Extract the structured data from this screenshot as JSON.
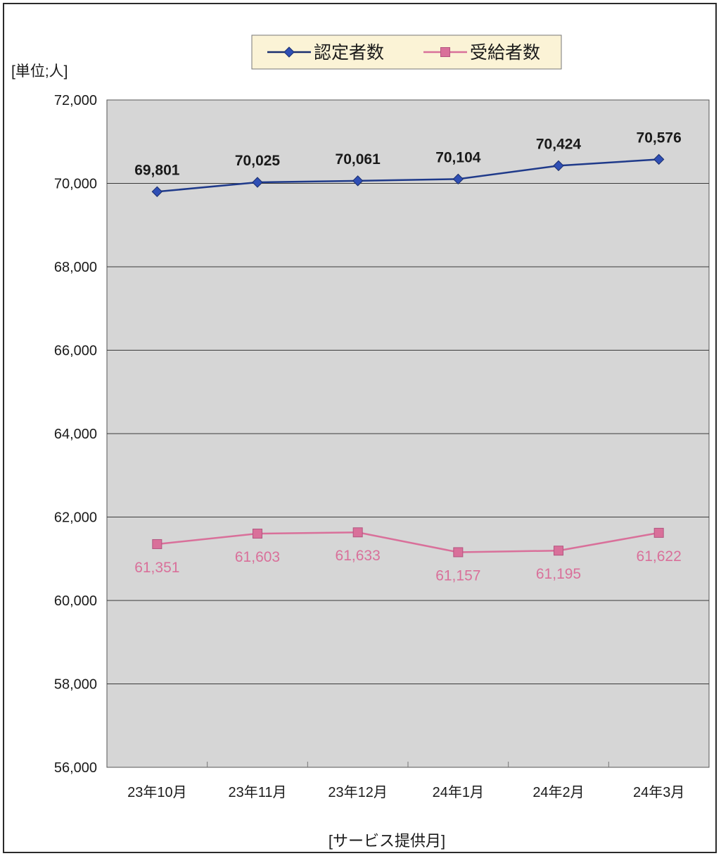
{
  "chart_data": {
    "type": "line",
    "unit_label": "[単位;人]",
    "xlabel": "[サービス提供月]",
    "categories": [
      "23年10月",
      "23年11月",
      "23年12月",
      "24年1月",
      "24年2月",
      "24年3月"
    ],
    "ylim": [
      56000,
      72000
    ],
    "yticks": [
      72000,
      70000,
      68000,
      66000,
      64000,
      62000,
      60000,
      58000,
      56000
    ],
    "ytick_labels": [
      "72,000",
      "70,000",
      "68,000",
      "66,000",
      "64,000",
      "62,000",
      "60,000",
      "58,000",
      "56,000"
    ],
    "grid": true,
    "legend_position": "top-center",
    "series": [
      {
        "name": "認定者数",
        "marker": "diamond",
        "color": "#1f3a8a",
        "values": [
          69801,
          70025,
          70061,
          70104,
          70424,
          70576
        ],
        "labels": [
          "69,801",
          "70,025",
          "70,061",
          "70,104",
          "70,424",
          "70,576"
        ]
      },
      {
        "name": "受給者数",
        "marker": "square",
        "color": "#d9709a",
        "values": [
          61351,
          61603,
          61633,
          61157,
          61195,
          61622
        ],
        "labels": [
          "61,351",
          "61,603",
          "61,633",
          "61,157",
          "61,195",
          "61,622"
        ]
      }
    ]
  },
  "colors": {
    "plot_background": "#d6d6d6",
    "legend_background": "#fbf3d6",
    "grid": "#3a3a3a",
    "label_dark": "#1a1a1a"
  }
}
